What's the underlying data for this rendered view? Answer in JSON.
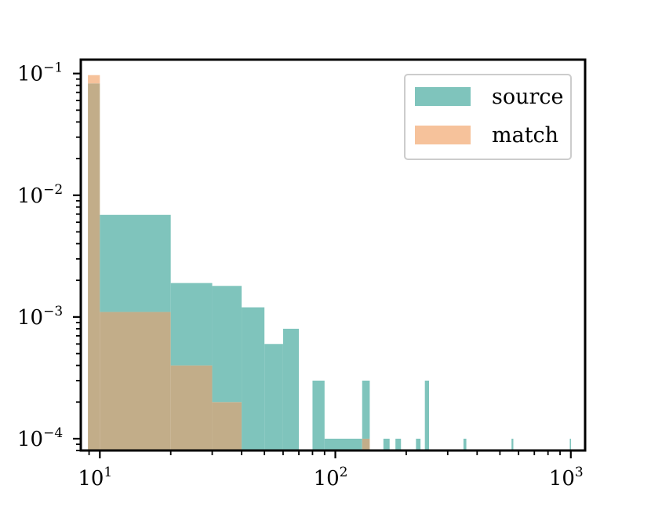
{
  "chart_data": {
    "type": "bar",
    "title": "",
    "xlabel": "",
    "ylabel": "",
    "xscale": "log",
    "yscale": "log",
    "xlim": [
      8.3,
      1150
    ],
    "ylim": [
      8e-05,
      0.13
    ],
    "x_ticks": [
      {
        "value": 10,
        "base": "10",
        "exp": "1"
      },
      {
        "value": 100,
        "base": "10",
        "exp": "2"
      },
      {
        "value": 1000,
        "base": "10",
        "exp": "3"
      }
    ],
    "y_ticks": [
      {
        "value": 0.1,
        "base": "10",
        "exp": "−1"
      },
      {
        "value": 0.01,
        "base": "10",
        "exp": "−2"
      },
      {
        "value": 0.001,
        "base": "10",
        "exp": "−3"
      },
      {
        "value": 0.0001,
        "base": "10",
        "exp": "−4"
      }
    ],
    "legend_position": "top-right",
    "grid": false,
    "series": [
      {
        "name": "source",
        "color": "#7fc4bc",
        "bins": [
          {
            "x0": 8.9,
            "x1": 10,
            "y": 0.083
          },
          {
            "x0": 10,
            "x1": 20,
            "y": 0.0069
          },
          {
            "x0": 20,
            "x1": 30,
            "y": 0.0019
          },
          {
            "x0": 30,
            "x1": 40,
            "y": 0.0018
          },
          {
            "x0": 40,
            "x1": 50,
            "y": 0.0012
          },
          {
            "x0": 50,
            "x1": 60,
            "y": 0.0006
          },
          {
            "x0": 60,
            "x1": 70,
            "y": 0.0008
          },
          {
            "x0": 80,
            "x1": 90,
            "y": 0.0003
          },
          {
            "x0": 90,
            "x1": 130,
            "y": 0.0001
          },
          {
            "x0": 130,
            "x1": 140,
            "y": 0.0003
          },
          {
            "x0": 160,
            "x1": 170,
            "y": 0.0001
          },
          {
            "x0": 180,
            "x1": 190,
            "y": 0.0001
          },
          {
            "x0": 220,
            "x1": 230,
            "y": 0.0001
          },
          {
            "x0": 240,
            "x1": 250,
            "y": 0.0003
          },
          {
            "x0": 350,
            "x1": 360,
            "y": 0.0001
          },
          {
            "x0": 560,
            "x1": 570,
            "y": 0.0001
          },
          {
            "x0": 990,
            "x1": 1000,
            "y": 0.0001
          }
        ]
      },
      {
        "name": "match",
        "color": "#f6c29b",
        "bins": [
          {
            "x0": 8.9,
            "x1": 10,
            "y": 0.097
          },
          {
            "x0": 10,
            "x1": 20,
            "y": 0.0011
          },
          {
            "x0": 20,
            "x1": 30,
            "y": 0.0004
          },
          {
            "x0": 30,
            "x1": 40,
            "y": 0.0002
          },
          {
            "x0": 130,
            "x1": 140,
            "y": 0.0001
          }
        ]
      }
    ],
    "overlap_color": "#c2ad89"
  }
}
